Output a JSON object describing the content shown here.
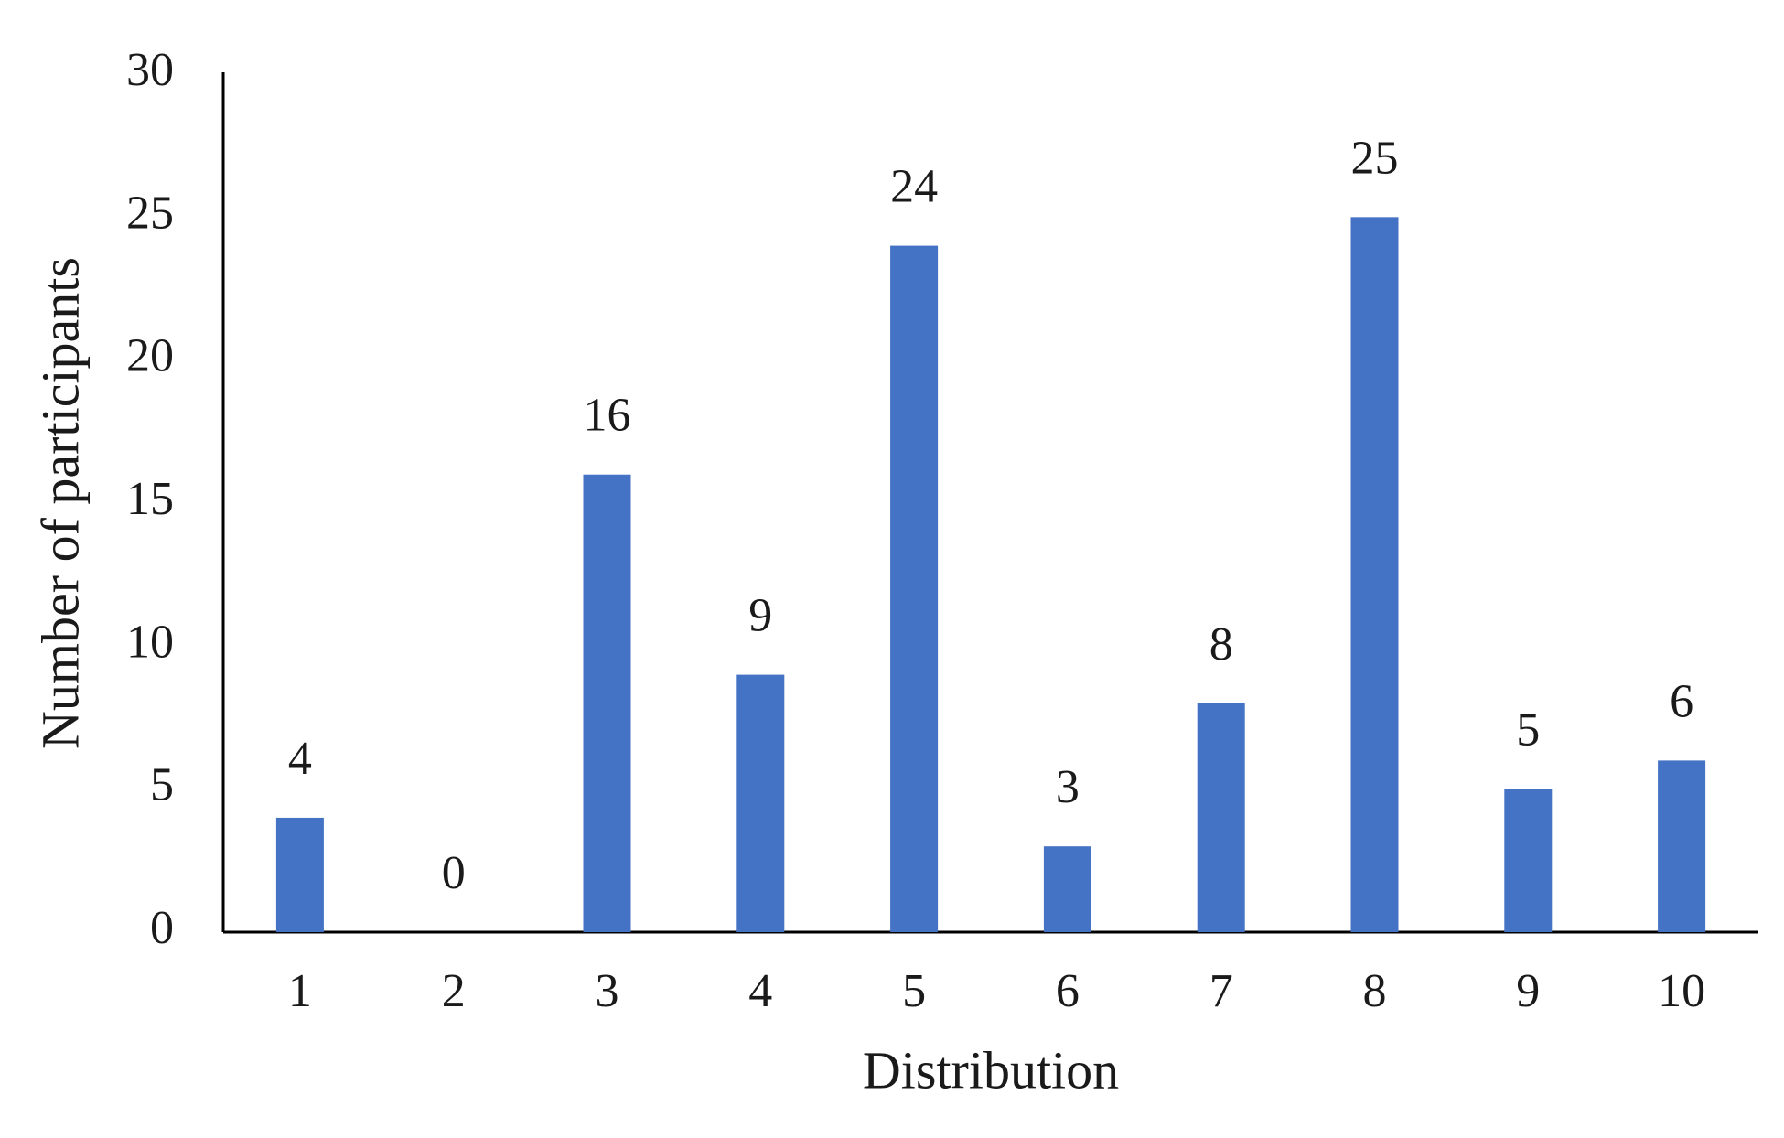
{
  "chart_data": {
    "type": "bar",
    "x_label": "Distribution",
    "y_label": "Number of participants",
    "categories": [
      "1",
      "2",
      "3",
      "4",
      "5",
      "6",
      "7",
      "8",
      "9",
      "10"
    ],
    "values": [
      4,
      0,
      16,
      9,
      24,
      3,
      8,
      25,
      5,
      6
    ],
    "color": "#4472c4",
    "ylim": [
      0,
      30
    ],
    "yticks": [
      0,
      5,
      10,
      15,
      20,
      25,
      30
    ],
    "grid": false
  }
}
